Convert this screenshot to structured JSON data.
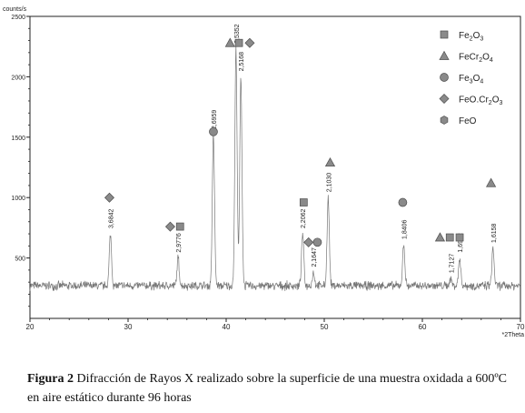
{
  "chart_data": {
    "type": "line",
    "x_axis": {
      "label": "*2Theta",
      "min": 20,
      "max": 70,
      "ticks": [
        20,
        30,
        40,
        50,
        60,
        70
      ]
    },
    "y_axis": {
      "label": "counts/s",
      "min": 0,
      "max": 2500,
      "ticks": [
        500,
        1000,
        1500,
        2000,
        2500
      ]
    },
    "grid": false,
    "baseline_counts": 270,
    "noise_amplitude": 30,
    "peaks": [
      {
        "x": 28.2,
        "y": 700,
        "label": "3,6842"
      },
      {
        "x": 35.1,
        "y": 500,
        "label": "2,9776"
      },
      {
        "x": 38.7,
        "y": 1520,
        "label": "2,6959"
      },
      {
        "x": 41.0,
        "y": 2230,
        "label": "2,5352"
      },
      {
        "x": 41.5,
        "y": 2000,
        "label": "2,5168"
      },
      {
        "x": 47.8,
        "y": 700,
        "label": "2,2062"
      },
      {
        "x": 48.9,
        "y": 380,
        "label": "2,1647"
      },
      {
        "x": 50.4,
        "y": 1000,
        "label": "2,1030"
      },
      {
        "x": 58.1,
        "y": 610,
        "label": "1,8406"
      },
      {
        "x": 62.9,
        "y": 330,
        "label": "1,7127"
      },
      {
        "x": 63.8,
        "y": 500,
        "label": "1,6932"
      },
      {
        "x": 67.2,
        "y": 580,
        "label": "1,6158"
      }
    ],
    "legend": {
      "placement": "top-right",
      "entries": [
        {
          "shape": "square",
          "main": "Fe",
          "parts": [
            [
              "Fe",
              ""
            ],
            [
              "2",
              "sub"
            ],
            [
              "O",
              ""
            ],
            [
              "3",
              "sub"
            ]
          ]
        },
        {
          "shape": "triangle",
          "main": "FeCr",
          "parts": [
            [
              "FeCr",
              ""
            ],
            [
              "2",
              "sub"
            ],
            [
              "O",
              ""
            ],
            [
              "4",
              "sub"
            ]
          ]
        },
        {
          "shape": "circle",
          "main": "Fe",
          "parts": [
            [
              "Fe",
              ""
            ],
            [
              "3",
              "sub"
            ],
            [
              "O",
              ""
            ],
            [
              "4",
              "sub"
            ]
          ]
        },
        {
          "shape": "diamond",
          "main": "FeO.Cr",
          "parts": [
            [
              "FeO.Cr",
              ""
            ],
            [
              "2",
              "sub"
            ],
            [
              "O",
              ""
            ],
            [
              "3",
              "sub"
            ]
          ]
        },
        {
          "shape": "hexagon",
          "main": "FeO",
          "parts": [
            [
              "FeO",
              ""
            ]
          ]
        }
      ]
    },
    "phase_markers": [
      {
        "x": 28.1,
        "y": 1000,
        "shape": "diamond"
      },
      {
        "x": 34.3,
        "y": 760,
        "shape": "diamond"
      },
      {
        "x": 35.3,
        "y": 760,
        "shape": "square"
      },
      {
        "x": 38.7,
        "y": 1545,
        "shape": "circle"
      },
      {
        "x": 40.4,
        "y": 2280,
        "shape": "triangle"
      },
      {
        "x": 41.3,
        "y": 2280,
        "shape": "square"
      },
      {
        "x": 42.4,
        "y": 2280,
        "shape": "diamond"
      },
      {
        "x": 47.9,
        "y": 960,
        "shape": "square"
      },
      {
        "x": 48.4,
        "y": 630,
        "shape": "diamond"
      },
      {
        "x": 49.3,
        "y": 630,
        "shape": "circle"
      },
      {
        "x": 50.6,
        "y": 1290,
        "shape": "triangle"
      },
      {
        "x": 58.0,
        "y": 960,
        "shape": "circle"
      },
      {
        "x": 61.8,
        "y": 670,
        "shape": "triangle"
      },
      {
        "x": 62.8,
        "y": 670,
        "shape": "square"
      },
      {
        "x": 63.8,
        "y": 670,
        "shape": "square"
      },
      {
        "x": 67.0,
        "y": 1120,
        "shape": "triangle"
      }
    ]
  },
  "caption": {
    "label": "Figura 2",
    "text": " Difracción de Rayos X realizado sobre la superficie de una muestra oxidada a 600ºC en aire estático durante 96 horas"
  },
  "colors": {
    "signal": "#777777",
    "marker": "#8a8a8a",
    "axis": "#222222"
  }
}
